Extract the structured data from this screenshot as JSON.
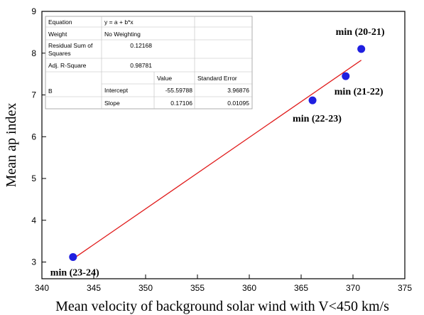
{
  "chart_data": {
    "type": "scatter",
    "xlabel": "Mean velocity of background solar wind with V<450 km/s",
    "ylabel": "Mean ap index",
    "xlim": [
      340,
      375
    ],
    "ylim": [
      2.6,
      9
    ],
    "xticks": [
      340,
      345,
      350,
      355,
      360,
      365,
      370,
      375
    ],
    "yticks": [
      3,
      4,
      5,
      6,
      7,
      8,
      9
    ],
    "grid": false,
    "colors": {
      "points": "#1f1fe0",
      "fit_line": "#e01b1b"
    },
    "points": [
      {
        "label": "min (20-21)",
        "x": 370.8,
        "y": 8.1
      },
      {
        "label": "min (21-22)",
        "x": 369.3,
        "y": 7.45
      },
      {
        "label": "min (22-23)",
        "x": 366.1,
        "y": 6.87
      },
      {
        "label": "min (23-24)",
        "x": 343.0,
        "y": 3.12
      }
    ],
    "fit": {
      "intercept": -55.59788,
      "slope": 0.17106,
      "x_range": [
        343,
        370.8
      ]
    },
    "fit_table": {
      "equation_label": "Equation",
      "equation_value": "y = a + b*x",
      "weight_label": "Weight",
      "weight_value": "No Weighting",
      "rss_label_1": "Residual Sum of",
      "rss_label_2": "Squares",
      "rss_value": "0.12168",
      "r2_label": "Adj. R-Square",
      "r2_value": "0.98781",
      "value_header": "Value",
      "se_header": "Standard Error",
      "param_label": "B",
      "intercept_label": "Intercept",
      "intercept_value": "-55.59788",
      "intercept_se": "3.96876",
      "slope_label": "Slope",
      "slope_value": "0.17106",
      "slope_se": "0.01095"
    }
  }
}
